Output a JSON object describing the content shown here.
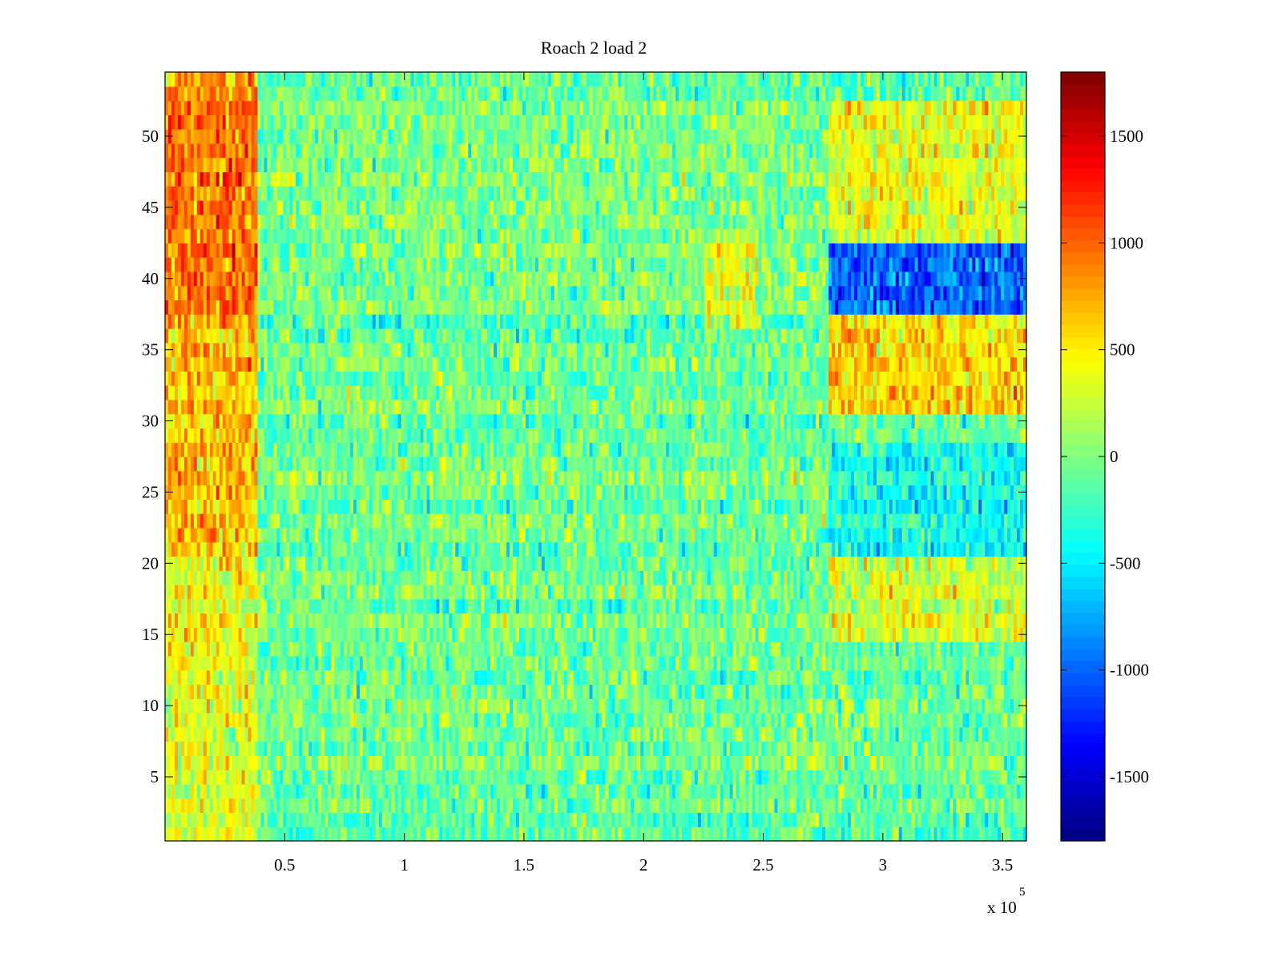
{
  "chart_data": {
    "type": "heatmap",
    "title": "Roach 2 load 2",
    "xlabel": "",
    "ylabel": "",
    "xlim": [
      0,
      360000
    ],
    "ylim": [
      0.5,
      54.5
    ],
    "x_ticks": [
      50000,
      100000,
      150000,
      200000,
      250000,
      300000,
      350000
    ],
    "x_tick_labels": [
      "0.5",
      "1",
      "1.5",
      "2",
      "2.5",
      "3",
      "3.5"
    ],
    "x_exponent": {
      "base": "x 10",
      "power": "5"
    },
    "y_ticks": [
      5,
      10,
      15,
      20,
      25,
      30,
      35,
      40,
      45,
      50
    ],
    "y_tick_labels": [
      "5",
      "10",
      "15",
      "20",
      "25",
      "30",
      "35",
      "40",
      "45",
      "50"
    ],
    "rows": 54,
    "colormap": "jet",
    "clim": [
      -1800,
      1800
    ],
    "colorbar": {
      "ticks": [
        -1500,
        -1000,
        -500,
        0,
        500,
        1000,
        1500
      ],
      "tick_labels": [
        "-1500",
        "-1000",
        "-500",
        "0",
        "500",
        "1000",
        "1500"
      ]
    },
    "regions": [
      {
        "label": "early high-load band",
        "x_range": [
          0,
          38000
        ],
        "y_range": [
          37,
          54
        ],
        "mean": 900
      },
      {
        "label": "early high-load band",
        "x_range": [
          0,
          38000
        ],
        "y_range": [
          21,
          37
        ],
        "mean": 650
      },
      {
        "label": "early elevated",
        "x_range": [
          0,
          38000
        ],
        "y_range": [
          1,
          21
        ],
        "mean": 380
      },
      {
        "label": "late negative band",
        "x_range": [
          278000,
          360000
        ],
        "y_range": [
          38,
          42
        ],
        "mean": -1050
      },
      {
        "label": "late positive band",
        "x_range": [
          278000,
          360000
        ],
        "y_range": [
          31,
          37
        ],
        "mean": 600
      },
      {
        "label": "late positive upper",
        "x_range": [
          278000,
          360000
        ],
        "y_range": [
          43,
          52
        ],
        "mean": 320
      },
      {
        "label": "late negative middle",
        "x_range": [
          278000,
          360000
        ],
        "y_range": [
          21,
          28
        ],
        "mean": -380
      },
      {
        "label": "late positive lower",
        "x_range": [
          278000,
          360000
        ],
        "y_range": [
          15,
          21
        ],
        "mean": 280
      },
      {
        "label": "mid elevated",
        "x_range": [
          225000,
          248000
        ],
        "y_range": [
          37,
          43
        ],
        "mean": 280
      },
      {
        "label": "background",
        "x_range": [
          38000,
          278000
        ],
        "y_range": [
          1,
          54
        ],
        "mean": -60
      }
    ]
  },
  "colors": {
    "axis": "#000000",
    "background": "#ffffff"
  }
}
